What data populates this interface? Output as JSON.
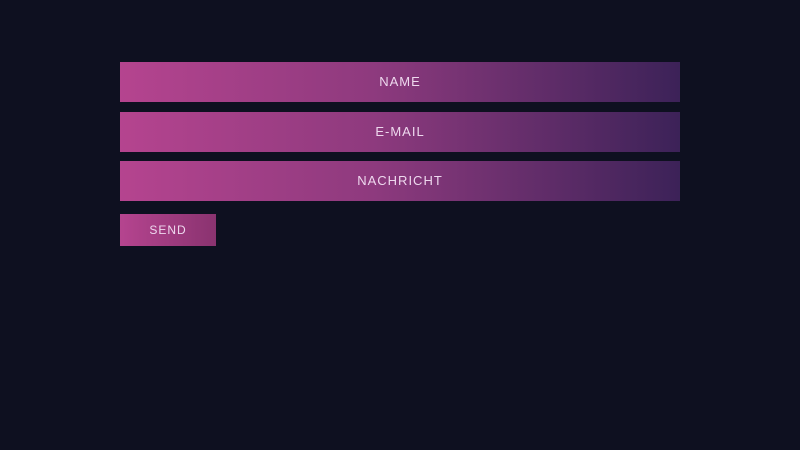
{
  "form": {
    "name_placeholder": "NAME",
    "email_placeholder": "E-MAIL",
    "message_placeholder": "NACHRICHT",
    "send_label": "SEND"
  },
  "colors": {
    "background": "#0e1020",
    "gradient_start": "#b5448f",
    "gradient_end": "#3c2258",
    "text": "#eed8ee"
  }
}
